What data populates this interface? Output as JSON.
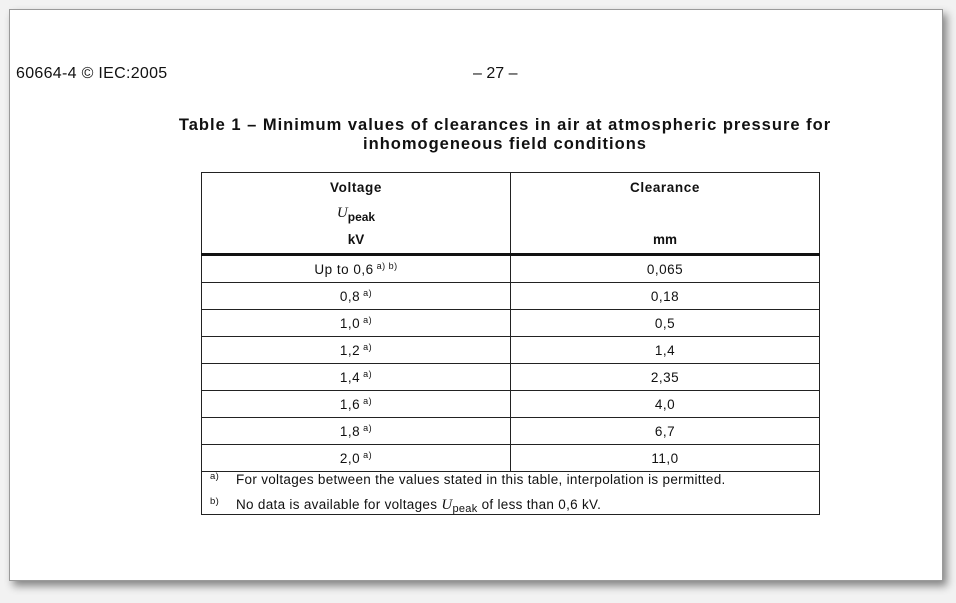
{
  "header": {
    "left": "60664-4 © IEC:2005",
    "center": "– 27 –"
  },
  "title": {
    "line1": "Table 1 – Minimum values of clearances in air at atmospheric pressure for",
    "line2": "inhomogeneous field conditions"
  },
  "table": {
    "col1": {
      "label": "Voltage",
      "symbol": "U",
      "symbol_sub": "peak",
      "unit": "kV"
    },
    "col2": {
      "label": "Clearance",
      "unit": "mm"
    },
    "rows": [
      {
        "voltage": "Up to 0,6",
        "notes": "a) b)",
        "clearance": "0,065"
      },
      {
        "voltage": "0,8",
        "notes": "a)",
        "clearance": "0,18"
      },
      {
        "voltage": "1,0",
        "notes": "a)",
        "clearance": "0,5"
      },
      {
        "voltage": "1,2",
        "notes": "a)",
        "clearance": "1,4"
      },
      {
        "voltage": "1,4",
        "notes": "a)",
        "clearance": "2,35"
      },
      {
        "voltage": "1,6",
        "notes": "a)",
        "clearance": "4,0"
      },
      {
        "voltage": "1,8",
        "notes": "a)",
        "clearance": "6,7"
      },
      {
        "voltage": "2,0",
        "notes": "a)",
        "clearance": "11,0"
      }
    ],
    "footnotes": [
      {
        "mark": "a)",
        "text": "For voltages between the values stated in this table, interpolation is permitted."
      },
      {
        "mark": "b)",
        "text_before": "No data is available for voltages",
        "symbol": "U",
        "symbol_sub": "peak",
        "text_after": "of less than 0,6 kV."
      }
    ]
  }
}
